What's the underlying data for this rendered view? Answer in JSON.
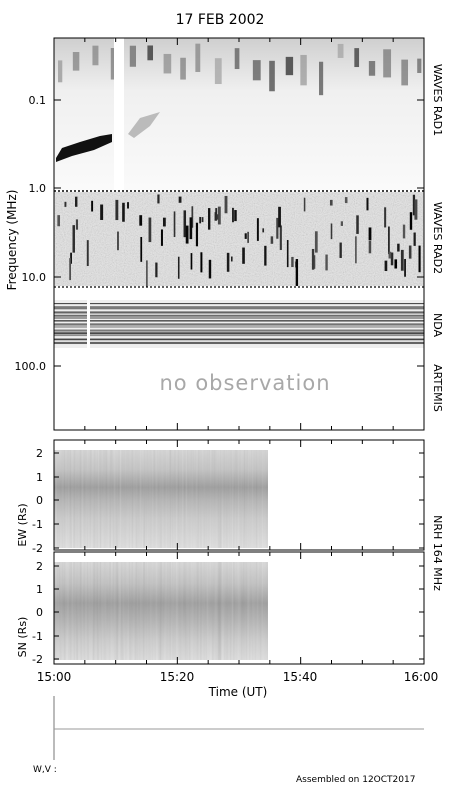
{
  "title": "17 FEB 2002",
  "footer": {
    "assembled": "Assembled on 12OCT2017",
    "wv_label": "W,V :"
  },
  "chart_data": [
    {
      "type": "heatmap",
      "panel": "radio-spectrogram",
      "ylabel": "Frequency (MHz)",
      "yscale": "log",
      "yticks": [
        "0.1",
        "1.0",
        "10.0",
        "100.0"
      ],
      "ylim": [
        0.02,
        500
      ],
      "inverted": true,
      "xlim": [
        "15:00",
        "16:00"
      ],
      "bands": [
        {
          "name": "WAVES RAD1",
          "freq_range_mhz": [
            0.02,
            1.07
          ]
        },
        {
          "name": "WAVES RAD2",
          "freq_range_mhz": [
            1.07,
            14
          ]
        },
        {
          "name": "NDA",
          "freq_range_mhz": [
            20,
            80
          ]
        },
        {
          "name": "ARTEMIS",
          "freq_range_mhz": [
            100,
            500
          ],
          "note": "no observation"
        }
      ],
      "data_gap": [
        "15:06",
        "15:07"
      ]
    },
    {
      "type": "heatmap",
      "panel": "nrh-ew",
      "ylabel": "EW (Rs)",
      "yticks": [
        "2",
        "1",
        "0",
        "-1",
        "-2"
      ],
      "ylim": [
        -2.2,
        2.2
      ],
      "xlim": [
        "15:00",
        "16:00"
      ],
      "data_range": [
        "15:00",
        "15:35"
      ]
    },
    {
      "type": "heatmap",
      "panel": "nrh-sn",
      "ylabel": "SN (Rs)",
      "yticks": [
        "2",
        "1",
        "0",
        "-1",
        "-2"
      ],
      "ylim": [
        -2.2,
        2.2
      ],
      "xlim": [
        "15:00",
        "16:00"
      ],
      "data_range": [
        "15:00",
        "15:35"
      ],
      "instrument_label": "NRH 164 MHz",
      "xlabel": "Time (UT)",
      "xticks": [
        "15:00",
        "15:20",
        "15:40",
        "16:00"
      ]
    }
  ]
}
